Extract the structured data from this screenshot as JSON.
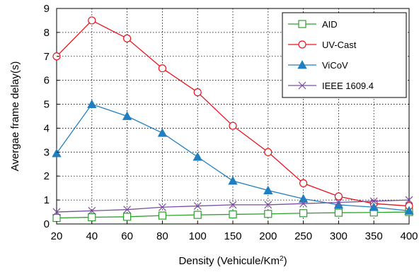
{
  "chart_data": {
    "type": "line",
    "title": "",
    "xlabel": "Density (Vehicule/Km",
    "xlabel_sup": "2",
    "xlabel_suffix": ")",
    "ylabel": "Avergae frame delay(s)",
    "categories": [
      "20",
      "40",
      "60",
      "80",
      "100",
      "150",
      "200",
      "250",
      "300",
      "350",
      "400"
    ],
    "ylim": [
      0,
      9
    ],
    "yticks": [
      "0",
      "1",
      "2",
      "3",
      "4",
      "5",
      "6",
      "7",
      "8",
      "9"
    ],
    "grid": true,
    "legend_position": "top-right",
    "series": [
      {
        "name": "AID",
        "color": "#2ca02c",
        "marker": "square-open",
        "values": [
          0.25,
          0.28,
          0.3,
          0.35,
          0.38,
          0.4,
          0.42,
          0.45,
          0.47,
          0.48,
          0.5
        ]
      },
      {
        "name": "UV-Cast",
        "color": "#e8141c",
        "marker": "circle-open",
        "values": [
          7.0,
          8.5,
          7.75,
          6.5,
          5.5,
          4.1,
          3.0,
          1.7,
          1.15,
          0.85,
          0.75
        ]
      },
      {
        "name": "ViCoV",
        "color": "#1f7fc0",
        "marker": "triangle-filled",
        "values": [
          2.95,
          5.0,
          4.5,
          3.8,
          2.8,
          1.8,
          1.4,
          1.05,
          0.8,
          0.7,
          0.55
        ]
      },
      {
        "name": "IEEE 1609.4",
        "color": "#7b4fa0",
        "marker": "x",
        "values": [
          0.5,
          0.55,
          0.6,
          0.7,
          0.75,
          0.8,
          0.8,
          0.85,
          0.9,
          0.95,
          1.0
        ]
      }
    ]
  }
}
